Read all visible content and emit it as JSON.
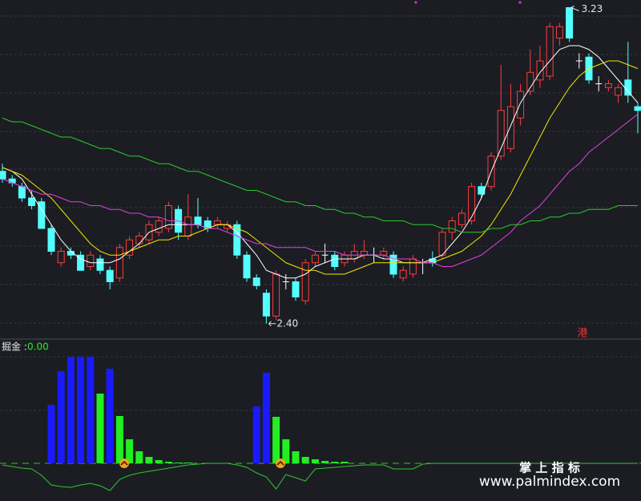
{
  "chart_data": [
    {
      "type": "candlestick",
      "open": [
        2.8,
        2.78,
        2.76,
        2.73,
        2.72,
        2.65,
        2.56,
        2.59,
        2.58,
        2.55,
        2.57,
        2.54,
        2.52,
        2.58,
        2.61,
        2.62,
        2.64,
        2.65,
        2.7,
        2.63,
        2.68,
        2.67,
        2.66,
        2.65,
        2.66,
        2.58,
        2.52,
        2.48,
        2.42,
        2.51,
        2.51,
        2.46,
        2.56,
        2.58,
        2.58,
        2.56,
        2.57,
        2.58,
        2.58,
        2.58,
        2.58,
        2.52,
        2.53,
        2.56,
        2.57,
        2.58,
        2.64,
        2.66,
        2.67,
        2.76,
        2.76,
        2.84,
        2.86,
        2.94,
        3.01,
        3.04,
        3.05,
        3.15,
        3.23,
        3.09,
        3.1,
        3.03,
        3.02,
        3.0,
        3.04,
        2.97
      ],
      "high": [
        2.82,
        2.79,
        2.77,
        2.75,
        2.73,
        2.66,
        2.6,
        2.6,
        2.59,
        2.59,
        2.58,
        2.55,
        2.61,
        2.63,
        2.64,
        2.67,
        2.68,
        2.72,
        2.71,
        2.74,
        2.73,
        2.68,
        2.68,
        2.67,
        2.67,
        2.59,
        2.53,
        2.49,
        2.54,
        2.53,
        2.52,
        2.57,
        2.59,
        2.61,
        2.59,
        2.59,
        2.61,
        2.62,
        2.6,
        2.6,
        2.59,
        2.55,
        2.58,
        2.57,
        2.59,
        2.65,
        2.68,
        2.7,
        2.77,
        2.77,
        2.85,
        3.08,
        3.03,
        3.03,
        3.12,
        3.13,
        3.19,
        3.19,
        3.23,
        3.11,
        3.11,
        3.05,
        3.04,
        3.03,
        3.14,
        2.98
      ],
      "low": [
        2.77,
        2.76,
        2.72,
        2.7,
        2.65,
        2.58,
        2.55,
        2.57,
        2.54,
        2.54,
        2.53,
        2.49,
        2.51,
        2.57,
        2.6,
        2.61,
        2.63,
        2.64,
        2.62,
        2.62,
        2.65,
        2.64,
        2.65,
        2.64,
        2.57,
        2.51,
        2.49,
        2.4,
        2.41,
        2.49,
        2.46,
        2.45,
        2.55,
        2.56,
        2.54,
        2.55,
        2.56,
        2.57,
        2.56,
        2.57,
        2.52,
        2.51,
        2.52,
        2.53,
        2.55,
        2.57,
        2.62,
        2.65,
        2.66,
        2.73,
        2.75,
        2.83,
        2.85,
        2.92,
        3.0,
        3.02,
        3.04,
        3.13,
        3.14,
        3.07,
        3.03,
        3.01,
        3.01,
        2.98,
        2.98,
        2.9
      ],
      "close": [
        2.78,
        2.77,
        2.73,
        2.71,
        2.65,
        2.59,
        2.59,
        2.58,
        2.54,
        2.58,
        2.54,
        2.51,
        2.6,
        2.62,
        2.63,
        2.66,
        2.67,
        2.71,
        2.64,
        2.68,
        2.66,
        2.65,
        2.67,
        2.66,
        2.58,
        2.52,
        2.5,
        2.42,
        2.53,
        2.51,
        2.47,
        2.56,
        2.58,
        2.58,
        2.55,
        2.58,
        2.59,
        2.59,
        2.58,
        2.59,
        2.53,
        2.54,
        2.57,
        2.56,
        2.56,
        2.64,
        2.67,
        2.69,
        2.76,
        2.74,
        2.84,
        2.96,
        2.97,
        3.01,
        3.06,
        3.09,
        3.18,
        3.18,
        3.15,
        3.09,
        3.04,
        3.03,
        3.03,
        3.02,
        3.0,
        2.96
      ],
      "up_color": "#ff3b3b",
      "down_color": "#54ffff",
      "flat_color": "#ffffff",
      "ylim": [
        2.37,
        3.25
      ],
      "lines": [
        {
          "color": "#ffffff",
          "values": [
            2.81,
            2.8,
            2.78,
            2.74,
            2.7,
            2.66,
            2.62,
            2.59,
            2.57,
            2.56,
            2.56,
            2.56,
            2.57,
            2.59,
            2.61,
            2.64,
            2.65,
            2.66,
            2.66,
            2.66,
            2.66,
            2.65,
            2.66,
            2.66,
            2.64,
            2.61,
            2.58,
            2.54,
            2.53,
            2.52,
            2.52,
            2.53,
            2.55,
            2.56,
            2.57,
            2.57,
            2.57,
            2.58,
            2.58,
            2.57,
            2.57,
            2.56,
            2.56,
            2.56,
            2.57,
            2.58,
            2.61,
            2.64,
            2.68,
            2.73,
            2.8,
            2.86,
            2.92,
            2.98,
            3.02,
            3.06,
            3.09,
            3.12,
            3.13,
            3.13,
            3.12,
            3.1,
            3.07,
            3.04,
            3.01,
            2.98
          ]
        },
        {
          "color": "#f2e600",
          "values": [
            2.81,
            2.8,
            2.79,
            2.77,
            2.75,
            2.73,
            2.7,
            2.67,
            2.64,
            2.61,
            2.59,
            2.58,
            2.58,
            2.59,
            2.6,
            2.61,
            2.62,
            2.62,
            2.63,
            2.63,
            2.64,
            2.65,
            2.66,
            2.66,
            2.65,
            2.64,
            2.62,
            2.6,
            2.58,
            2.56,
            2.55,
            2.54,
            2.54,
            2.53,
            2.53,
            2.53,
            2.54,
            2.55,
            2.56,
            2.56,
            2.56,
            2.56,
            2.56,
            2.56,
            2.56,
            2.57,
            2.58,
            2.59,
            2.61,
            2.63,
            2.66,
            2.7,
            2.74,
            2.79,
            2.84,
            2.89,
            2.94,
            2.98,
            3.02,
            3.05,
            3.07,
            3.08,
            3.09,
            3.09,
            3.08,
            3.07
          ]
        },
        {
          "color": "#e040e0",
          "values": [
            2.78,
            2.77,
            2.76,
            2.75,
            2.74,
            2.74,
            2.73,
            2.72,
            2.72,
            2.71,
            2.71,
            2.7,
            2.7,
            2.69,
            2.69,
            2.68,
            2.68,
            2.67,
            2.67,
            2.66,
            2.66,
            2.65,
            2.65,
            2.64,
            2.63,
            2.62,
            2.61,
            2.61,
            2.6,
            2.6,
            2.6,
            2.6,
            2.59,
            2.59,
            2.59,
            2.58,
            2.58,
            2.58,
            2.58,
            2.58,
            2.57,
            2.57,
            2.57,
            2.56,
            2.56,
            2.55,
            2.55,
            2.56,
            2.57,
            2.58,
            2.6,
            2.62,
            2.64,
            2.67,
            2.69,
            2.71,
            2.74,
            2.77,
            2.8,
            2.82,
            2.85,
            2.87,
            2.89,
            2.91,
            2.93,
            2.95
          ]
        },
        {
          "color": "#2ec82e",
          "values": [
            2.94,
            2.93,
            2.93,
            2.92,
            2.91,
            2.9,
            2.89,
            2.89,
            2.88,
            2.87,
            2.86,
            2.86,
            2.85,
            2.84,
            2.84,
            2.83,
            2.82,
            2.82,
            2.81,
            2.8,
            2.8,
            2.79,
            2.78,
            2.77,
            2.76,
            2.75,
            2.75,
            2.74,
            2.73,
            2.72,
            2.72,
            2.71,
            2.71,
            2.7,
            2.7,
            2.69,
            2.69,
            2.68,
            2.68,
            2.67,
            2.67,
            2.67,
            2.66,
            2.66,
            2.66,
            2.65,
            2.65,
            2.64,
            2.64,
            2.64,
            2.65,
            2.65,
            2.66,
            2.66,
            2.67,
            2.67,
            2.68,
            2.68,
            2.69,
            2.69,
            2.7,
            2.7,
            2.7,
            2.71,
            2.71,
            2.71
          ]
        }
      ],
      "high_mark": 3.23,
      "low_mark": {
        "value": 2.4,
        "label": "2.40"
      },
      "badge": "港"
    },
    {
      "type": "bar",
      "title": "掘金 :",
      "current": {
        "value": 0,
        "label": "0.00"
      },
      "ylim": [
        -47,
        153
      ],
      "series": [
        {
          "color": "#1a1aff",
          "values": [
            null,
            null,
            null,
            null,
            null,
            73,
            115,
            133,
            133,
            133,
            null,
            118,
            null,
            null,
            null,
            null,
            null,
            null,
            null,
            null,
            null,
            null,
            null,
            null,
            null,
            null,
            71,
            113,
            null,
            null,
            null,
            null,
            null,
            null,
            null,
            null,
            null,
            null,
            null,
            null,
            null,
            null,
            null,
            null,
            null,
            null,
            null,
            null,
            null,
            null,
            null,
            null,
            null,
            null,
            null,
            null,
            null,
            null,
            null,
            null,
            null,
            null,
            null,
            null,
            null,
            null
          ]
        },
        {
          "color": "#22ee22",
          "values": [
            null,
            null,
            null,
            null,
            null,
            null,
            null,
            null,
            null,
            null,
            87,
            null,
            59,
            30,
            15,
            8,
            4,
            2,
            1,
            1,
            null,
            null,
            null,
            null,
            null,
            null,
            null,
            null,
            58,
            30,
            15,
            8,
            5,
            3,
            2,
            2,
            null,
            null,
            null,
            null,
            null,
            null,
            null,
            null,
            null,
            null,
            null,
            null,
            null,
            null,
            null,
            null,
            null,
            null,
            null,
            null,
            null,
            null,
            null,
            null,
            null,
            null,
            null,
            null,
            null,
            null
          ]
        }
      ],
      "line": {
        "color": "#2ec82e",
        "values": [
          -2,
          -4,
          -6,
          -7,
          -15,
          -27,
          -29,
          -30,
          -27,
          -25,
          -28,
          -34,
          -20,
          -15,
          -12,
          -10,
          -8,
          -6,
          -4,
          -2,
          -1,
          0,
          0,
          0,
          -2,
          -5,
          -12,
          -17,
          -32,
          -14,
          -18,
          -22,
          -7,
          -6,
          -5,
          -4,
          -3,
          -2,
          -2,
          -2,
          -7,
          -7,
          -7,
          -1,
          0,
          0,
          0,
          0,
          0,
          0,
          0,
          0,
          0,
          0,
          0,
          0,
          0,
          0,
          0,
          0,
          0,
          0,
          0,
          0,
          0,
          0
        ]
      }
    }
  ],
  "watermark": {
    "title": "掌 上 指 标",
    "url": "www.palmindex.com"
  }
}
